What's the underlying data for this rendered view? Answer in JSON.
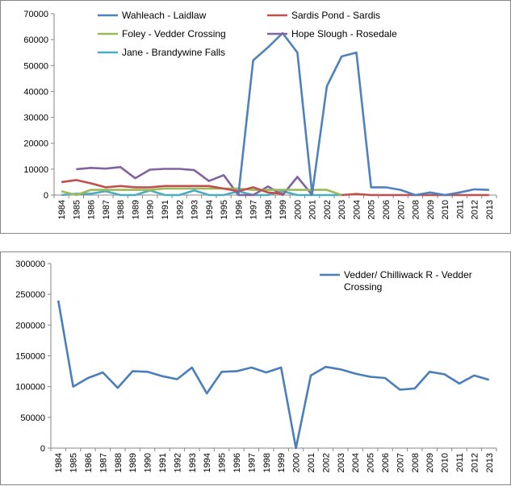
{
  "chart_data": [
    {
      "type": "line",
      "categories": [
        "1984",
        "1985",
        "1986",
        "1987",
        "1988",
        "1989",
        "1990",
        "1991",
        "1992",
        "1993",
        "1994",
        "1995",
        "1996",
        "1997",
        "1998",
        "1999",
        "2000",
        "2001",
        "2002",
        "2003",
        "2004",
        "2005",
        "2006",
        "2007",
        "2008",
        "2009",
        "2010",
        "2011",
        "2012",
        "2013"
      ],
      "ylim": [
        0,
        70000
      ],
      "yticks": [
        "0",
        "10000",
        "20000",
        "30000",
        "40000",
        "50000",
        "60000",
        "70000"
      ],
      "grid": false,
      "legend_position": "top",
      "series": [
        {
          "name": "Wahleach - Laidlaw",
          "color": "#4f81bd",
          "values": [
            null,
            null,
            null,
            null,
            null,
            null,
            null,
            null,
            null,
            null,
            null,
            null,
            0,
            52000,
            57000,
            62500,
            55000,
            500,
            42000,
            53500,
            55000,
            3000,
            3000,
            2000,
            0,
            1000,
            0,
            1000,
            2200,
            2000
          ]
        },
        {
          "name": "Sardis Pond - Sardis",
          "color": "#c0504d",
          "values": [
            5000,
            5800,
            4500,
            3000,
            3500,
            3000,
            3000,
            3500,
            3500,
            3500,
            3500,
            2500,
            1500,
            3000,
            1000,
            500,
            null,
            null,
            null,
            0,
            400,
            0,
            0,
            0,
            0,
            0,
            0,
            0,
            0,
            0
          ]
        },
        {
          "name": "Foley - Vedder Crossing",
          "color": "#9bbb59",
          "values": [
            1500,
            0,
            2000,
            2000,
            2000,
            2000,
            2000,
            2500,
            2500,
            2500,
            2500,
            2500,
            2500,
            2000,
            2000,
            2000,
            2000,
            2000,
            2000,
            0,
            null,
            null,
            null,
            null,
            null,
            null,
            null,
            null,
            null,
            null
          ]
        },
        {
          "name": "Hope Slough - Rosedale",
          "color": "#8064a2",
          "values": [
            null,
            10000,
            10500,
            10200,
            10800,
            6500,
            9800,
            10100,
            10100,
            9600,
            5400,
            7700,
            0,
            0,
            3300,
            0,
            7000,
            0,
            null,
            null,
            null,
            null,
            null,
            null,
            null,
            null,
            null,
            null,
            null,
            null
          ]
        },
        {
          "name": "Jane - Brandywine Falls",
          "color": "#4bacc6",
          "values": [
            0,
            500,
            500,
            1500,
            0,
            0,
            1800,
            0,
            0,
            1800,
            0,
            0,
            1500,
            0,
            0,
            1500,
            0,
            0,
            0,
            0,
            null,
            null,
            null,
            null,
            null,
            null,
            null,
            null,
            null,
            null
          ]
        }
      ]
    },
    {
      "type": "line",
      "categories": [
        "1984",
        "1985",
        "1986",
        "1987",
        "1988",
        "1989",
        "1990",
        "1991",
        "1992",
        "1993",
        "1994",
        "1995",
        "1996",
        "1997",
        "1998",
        "1999",
        "2000",
        "2001",
        "2002",
        "2003",
        "2004",
        "2005",
        "2006",
        "2007",
        "2008",
        "2009",
        "2010",
        "2011",
        "2012",
        "2013"
      ],
      "ylim": [
        0,
        300000
      ],
      "yticks": [
        "0",
        "50000",
        "100000",
        "150000",
        "200000",
        "250000",
        "300000"
      ],
      "grid": false,
      "legend_position": "top-right",
      "series": [
        {
          "name": "Vedder/ Chilliwack R - Vedder Crossing",
          "legend_lines": [
            "Vedder/ Chilliwack R - Vedder",
            "Crossing"
          ],
          "color": "#4a7ebb",
          "values": [
            240000,
            100000,
            114000,
            123000,
            98000,
            125000,
            124000,
            117000,
            112000,
            131000,
            89000,
            124000,
            125000,
            131000,
            123000,
            131000,
            0,
            118000,
            132000,
            128000,
            121000,
            116000,
            114000,
            95000,
            97000,
            124000,
            120000,
            105000,
            118000,
            111000
          ]
        }
      ]
    }
  ]
}
